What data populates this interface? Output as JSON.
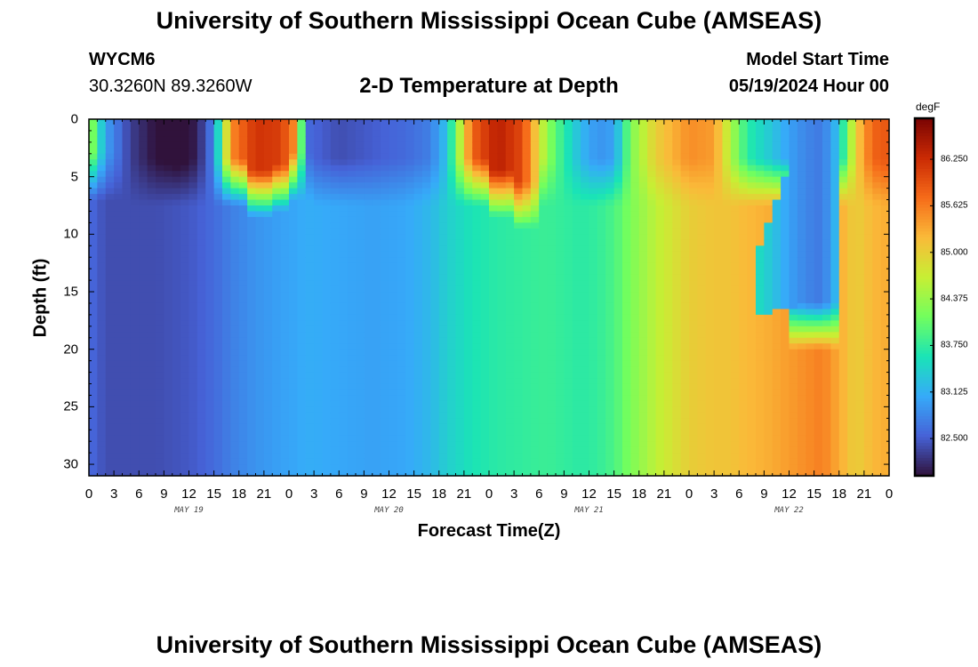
{
  "header": {
    "title": "University of Southern Mississippi Ocean Cube (AMSEAS)",
    "station": "WYCM6",
    "coords": "30.3260N  89.3260W",
    "subtitle": "2-D Temperature at Depth",
    "model_start_label": "Model Start Time",
    "model_start_value": "05/19/2024 Hour 00"
  },
  "footer": {
    "title": "University of Southern Mississippi Ocean Cube (AMSEAS)"
  },
  "colorbar": {
    "unit": "degF",
    "ticks": [
      "86.250",
      "85.625",
      "85.000",
      "84.375",
      "83.750",
      "83.125",
      "82.500"
    ],
    "tick_values": [
      86.25,
      85.625,
      85.0,
      84.375,
      83.75,
      83.125,
      82.5
    ],
    "range": [
      82.0,
      86.8
    ],
    "colormap": [
      "#30123b",
      "#4662d7",
      "#36aaf9",
      "#1ae4b6",
      "#72fe5e",
      "#c7ef34",
      "#faba39",
      "#f66b19",
      "#ca2a04",
      "#7a0403"
    ]
  },
  "chart_data": {
    "type": "heatmap",
    "xlabel": "Forecast Time(Z)",
    "ylabel": "Depth (ft)",
    "xlim": [
      0,
      96
    ],
    "ylim": [
      31,
      0
    ],
    "x_tick_values": [
      0,
      3,
      6,
      9,
      12,
      15,
      18,
      21,
      24,
      27,
      30,
      33,
      36,
      39,
      42,
      45,
      48,
      51,
      54,
      57,
      60,
      63,
      66,
      69,
      72,
      75,
      78,
      81,
      84,
      87,
      90,
      93,
      96
    ],
    "x_tick_labels": [
      "0",
      "3",
      "6",
      "9",
      "12",
      "15",
      "18",
      "21",
      "0",
      "3",
      "6",
      "9",
      "12",
      "15",
      "18",
      "21",
      "0",
      "3",
      "6",
      "9",
      "12",
      "15",
      "18",
      "21",
      "0",
      "3",
      "6",
      "9",
      "12",
      "15",
      "18",
      "21",
      "0"
    ],
    "y_tick_values": [
      0,
      5,
      10,
      15,
      20,
      25,
      30
    ],
    "y_tick_labels": [
      "0",
      "5",
      "10",
      "15",
      "20",
      "25",
      "30"
    ],
    "day_labels": [
      {
        "x": 12,
        "text": "MAY 19"
      },
      {
        "x": 36,
        "text": "MAY 20"
      },
      {
        "x": 60,
        "text": "MAY 21"
      },
      {
        "x": 84,
        "text": "MAY 22"
      }
    ],
    "value_unit": "degF",
    "surface_layer_depth": 3.5,
    "columns": [
      {
        "t": 0,
        "surface": 84.5,
        "deep": 82.6,
        "layer_bottom": 3.0
      },
      {
        "t": 2,
        "surface": 83.0,
        "deep": 82.4,
        "layer_bottom": 3.0
      },
      {
        "t": 5,
        "surface": 82.3,
        "deep": 82.4
      },
      {
        "t": 8,
        "surface": 82.0,
        "deep": 82.4
      },
      {
        "t": 11,
        "surface": 81.9,
        "deep": 82.45
      },
      {
        "t": 13,
        "surface": 82.1,
        "deep": 82.5
      },
      {
        "t": 15,
        "surface": 82.8,
        "deep": 82.6
      },
      {
        "t": 17,
        "surface": 85.5,
        "deep": 82.75,
        "layer_bottom": 3.5
      },
      {
        "t": 20,
        "surface": 86.2,
        "deep": 82.9,
        "layer_bottom": 4.5
      },
      {
        "t": 23,
        "surface": 86.1,
        "deep": 83.0,
        "layer_bottom": 4.0
      },
      {
        "t": 25,
        "surface": 85.4,
        "deep": 83.05,
        "layer_bottom": 3.0
      },
      {
        "t": 26,
        "surface": 82.6,
        "deep": 83.1
      },
      {
        "t": 30,
        "surface": 82.4,
        "deep": 83.05
      },
      {
        "t": 34,
        "surface": 82.5,
        "deep": 83.0
      },
      {
        "t": 38,
        "surface": 82.6,
        "deep": 83.05
      },
      {
        "t": 41,
        "surface": 82.75,
        "deep": 83.2
      },
      {
        "t": 43,
        "surface": 83.3,
        "deep": 83.4
      },
      {
        "t": 46,
        "surface": 85.8,
        "deep": 83.6,
        "layer_bottom": 3.5
      },
      {
        "t": 49,
        "surface": 86.4,
        "deep": 83.7,
        "layer_bottom": 4.5
      },
      {
        "t": 52,
        "surface": 86.0,
        "deep": 83.75,
        "layer_bottom": 5.5
      },
      {
        "t": 55,
        "surface": 84.3,
        "deep": 83.8,
        "layer_bottom": 3.5
      },
      {
        "t": 57,
        "surface": 83.7,
        "deep": 83.75
      },
      {
        "t": 59,
        "surface": 83.2,
        "deep": 83.7
      },
      {
        "t": 61,
        "surface": 82.9,
        "deep": 83.75
      },
      {
        "t": 63,
        "surface": 83.0,
        "deep": 83.9
      },
      {
        "t": 65,
        "surface": 84.2,
        "deep": 84.2
      },
      {
        "t": 68,
        "surface": 85.0,
        "deep": 84.6
      },
      {
        "t": 72,
        "surface": 85.5,
        "deep": 85.0
      },
      {
        "t": 75,
        "surface": 85.4,
        "deep": 85.1
      },
      {
        "t": 77,
        "surface": 84.5,
        "deep": 85.1
      },
      {
        "t": 79,
        "surface": 83.7,
        "deep": 85.2
      },
      {
        "t": 82,
        "surface": 83.3,
        "deep": 85.3
      },
      {
        "t": 84,
        "surface": 83.0,
        "deep": 85.4
      },
      {
        "t": 86,
        "surface": 82.8,
        "deep": 85.5,
        "layer_bottom": 16.0
      },
      {
        "t": 88,
        "surface": 82.7,
        "deep": 85.6,
        "layer_bottom": 16.0
      },
      {
        "t": 90,
        "surface": 83.3,
        "deep": 85.3
      },
      {
        "t": 92,
        "surface": 85.0,
        "deep": 85.0
      },
      {
        "t": 94,
        "surface": 85.8,
        "deep": 85.2
      },
      {
        "t": 96,
        "surface": 85.9,
        "deep": 85.3
      }
    ],
    "deep_cold_lens": [
      {
        "t": 80,
        "depth_top": 12,
        "depth_bottom": 17
      },
      {
        "t": 86,
        "depth_top": 0,
        "depth_bottom": 16
      },
      {
        "t": 89,
        "depth_top": 0,
        "depth_bottom": 16
      }
    ]
  }
}
